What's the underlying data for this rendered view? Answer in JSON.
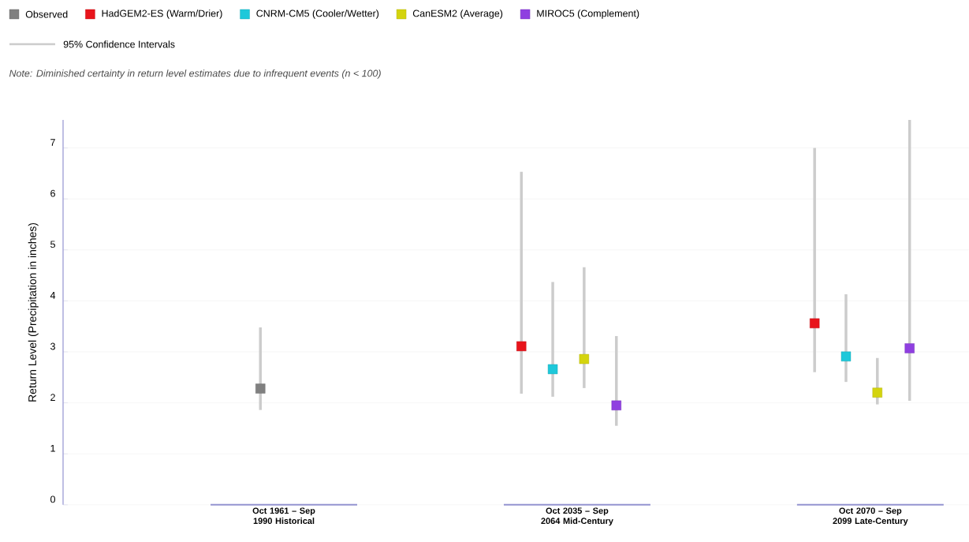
{
  "chart_data": {
    "type": "scatter",
    "ylabel": "Return Level (Precipitation in inches)",
    "categories": [
      "Oct 1961 – Sep 1990 Historical",
      "Oct 2035 – Sep 2064 Mid-Century",
      "Oct 2070 – Sep 2099 Late-Century"
    ],
    "series": [
      {
        "name": "Observed",
        "color": "#808080",
        "values": [
          2.28,
          null,
          null
        ],
        "errors": [
          [
            1.86,
            3.48
          ],
          null,
          null
        ]
      },
      {
        "name": "HadGEM2-ES (Warm/Drier)",
        "color": "#e8141b",
        "values": [
          null,
          3.11,
          3.56
        ],
        "errors": [
          null,
          [
            2.18,
            6.53
          ],
          [
            2.6,
            7.0
          ]
        ]
      },
      {
        "name": "CNRM-CM5 (Cooler/Wetter)",
        "color": "#1ec8da",
        "values": [
          null,
          2.66,
          2.91
        ],
        "errors": [
          null,
          [
            2.12,
            4.37
          ],
          [
            2.41,
            4.13
          ]
        ]
      },
      {
        "name": "CanESM2 (Average)",
        "color": "#d4d40e",
        "values": [
          null,
          2.86,
          2.2
        ],
        "errors": [
          null,
          [
            2.29,
            4.66
          ],
          [
            1.97,
            2.88
          ]
        ]
      },
      {
        "name": "MIROC5 (Complement)",
        "color": "#8f3fe0",
        "values": [
          null,
          1.95,
          3.07
        ],
        "errors": [
          null,
          [
            1.55,
            3.31
          ],
          [
            2.04,
            7.55
          ]
        ]
      }
    ],
    "annotations": [
      "95% Confidence Intervals",
      "Note: Diminished certainty in return level estimates due to infrequent events (n < 100)"
    ],
    "ylim": [
      0,
      7.55
    ],
    "yticks": [
      0,
      1,
      2,
      3,
      4,
      5,
      6,
      7
    ],
    "grid": "y",
    "legend": "top left",
    "marker": "square"
  }
}
